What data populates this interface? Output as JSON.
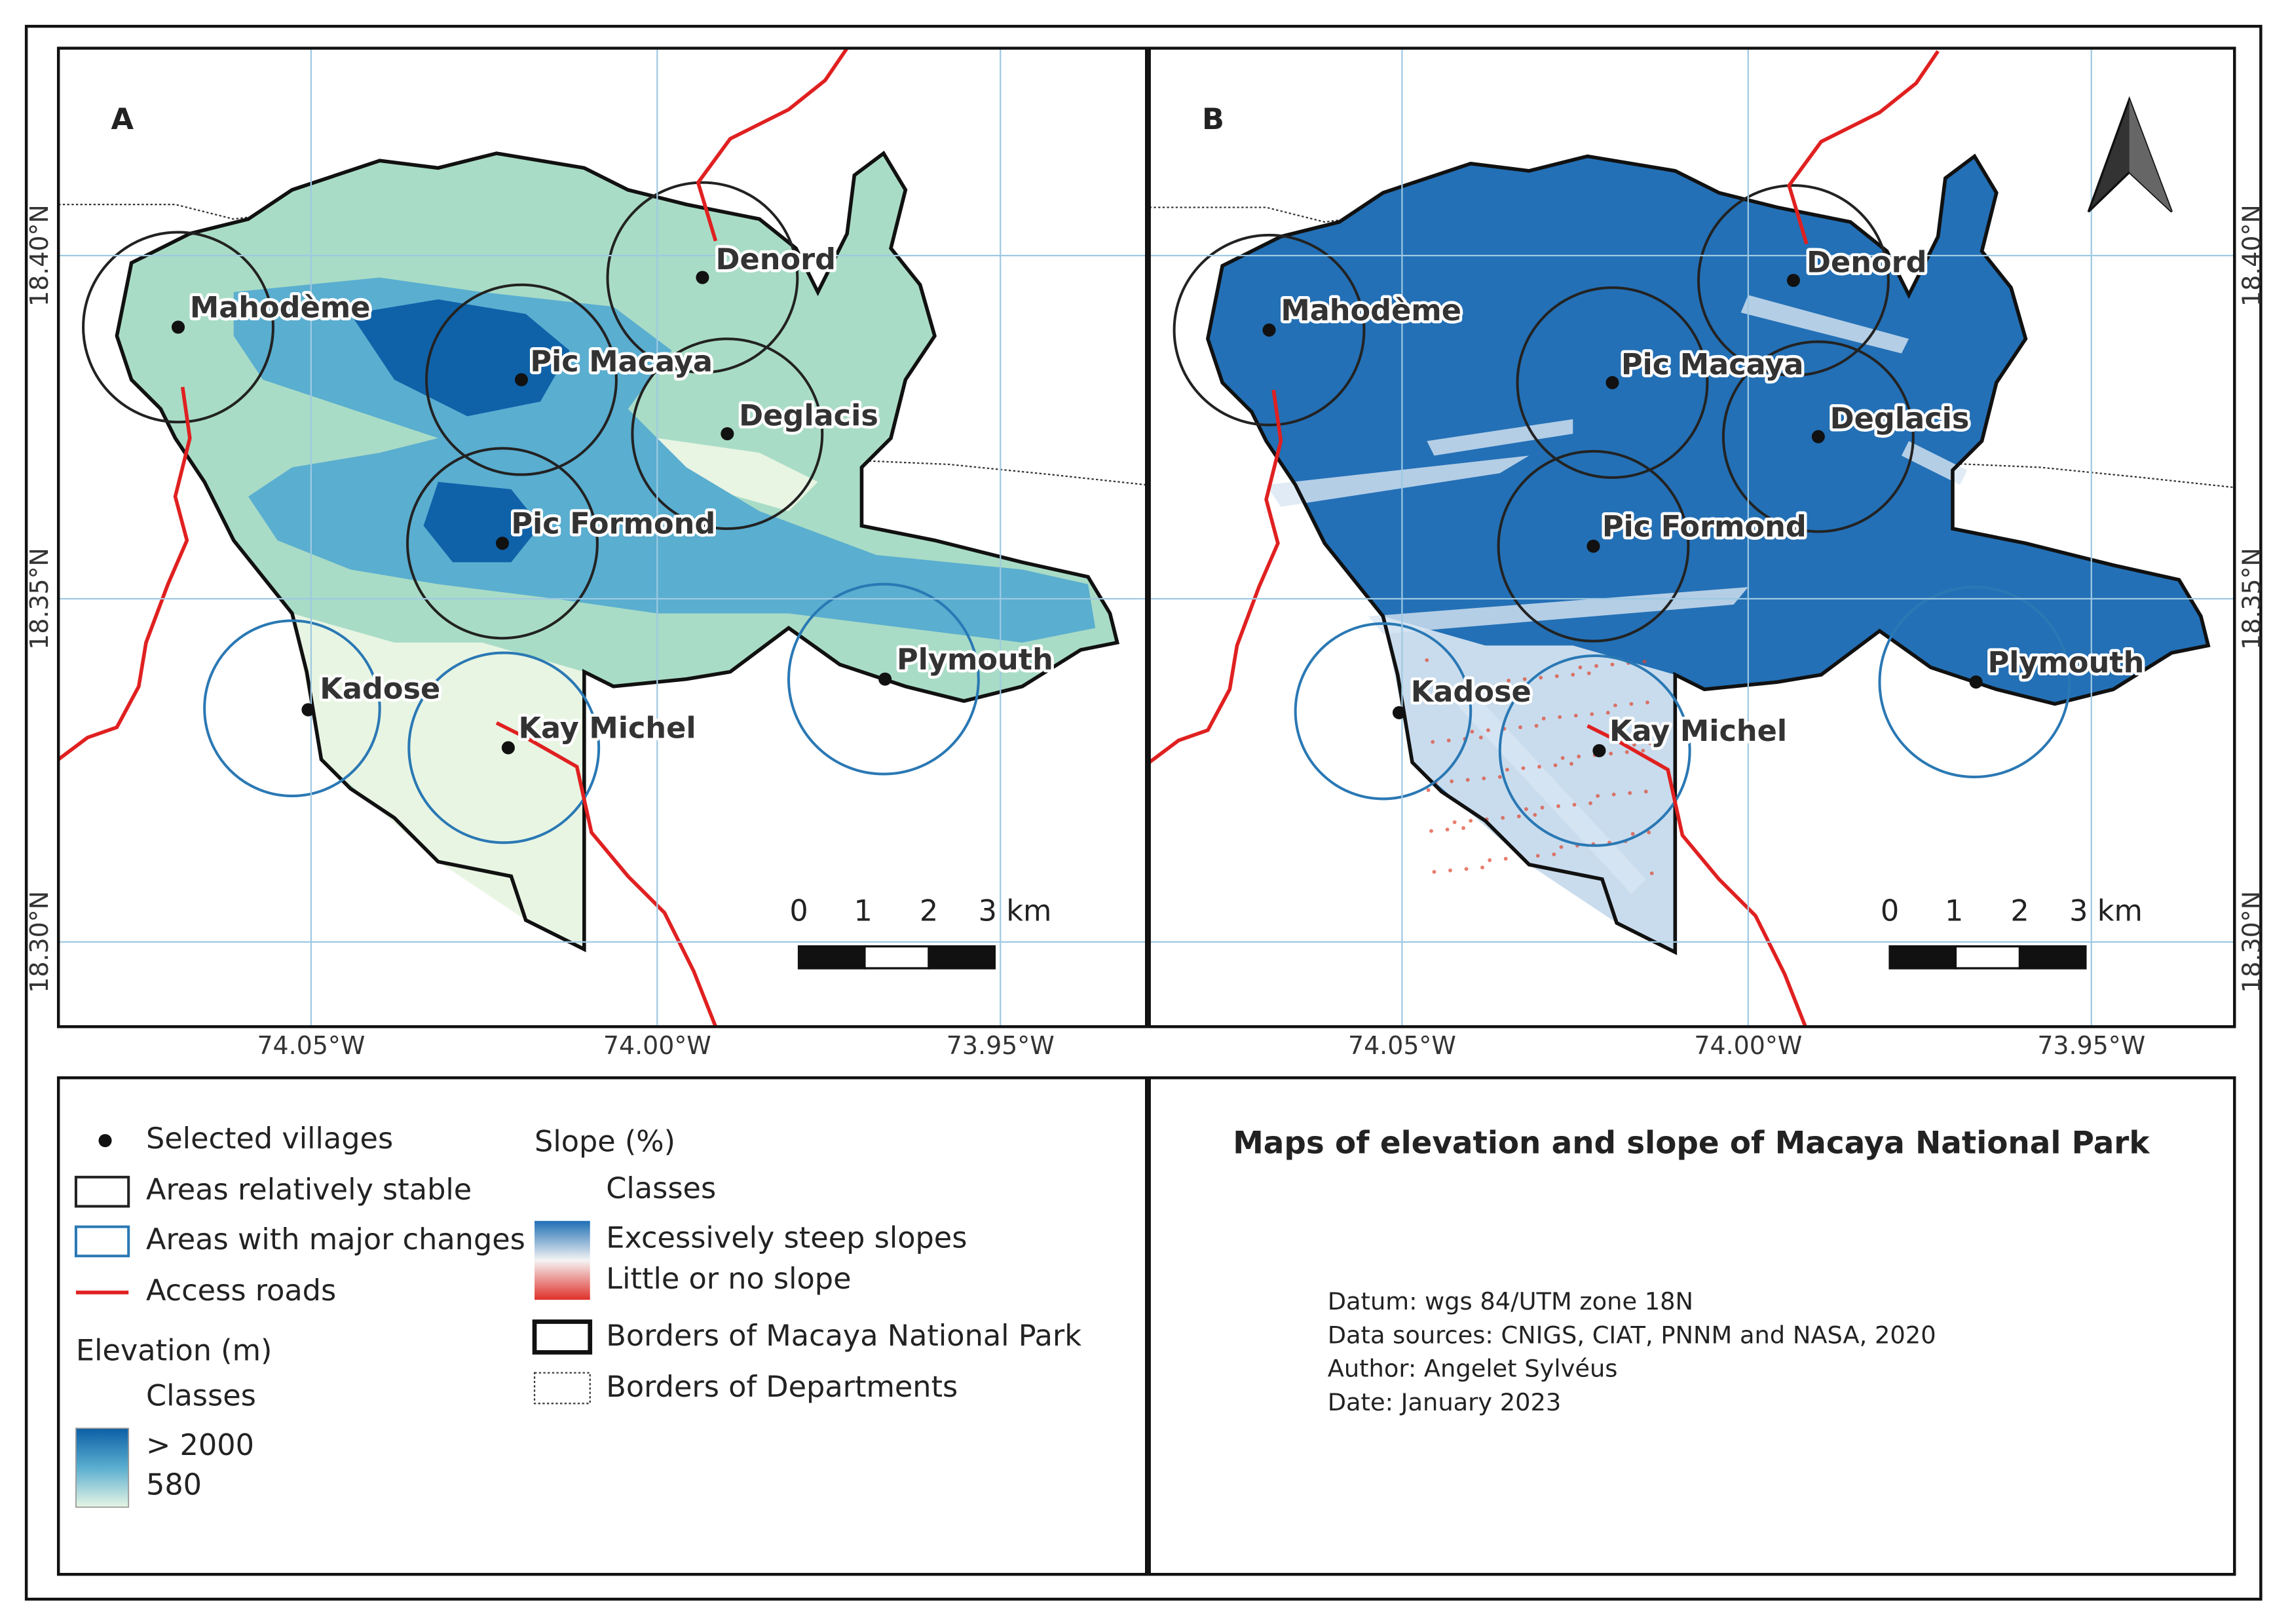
{
  "panels": [
    "A",
    "B"
  ],
  "villages": [
    "Mahodème",
    "Denord",
    "Pic Macaya",
    "Deglacis",
    "Pic Formond",
    "Kadose",
    "Kay Michel",
    "Plymouth"
  ],
  "lat_labels": [
    "18.40°N",
    "18.35°N",
    "18.30°N"
  ],
  "lon_labels": [
    "74.05°W",
    "74.00°W",
    "73.95°W"
  ],
  "scale_labels": [
    "0",
    "1",
    "2",
    "3 km"
  ],
  "legend": {
    "villages": "Selected villages",
    "stable": "Areas relatively stable",
    "changes": "Areas with major changes",
    "roads": "Access roads",
    "elevation_title": "Elevation (m)",
    "elevation_classes": "Classes",
    "elevation_high": "> 2000",
    "elevation_low": "580",
    "slope_title": "Slope (%)",
    "slope_classes": "Classes",
    "slope_high": "Excessively steep slopes",
    "slope_low": "Little or no slope",
    "park_borders": "Borders of Macaya National Park",
    "department_borders": "Borders of Departments"
  },
  "title": "Maps of elevation and slope of Macaya National Park",
  "info": [
    "Datum: wgs 84/UTM zone 18N",
    "Data sources: CNIGS, CIAT, PNNM and NASA, 2020",
    "Author: Angelet Sylvéus",
    "Date: January 2023"
  ]
}
